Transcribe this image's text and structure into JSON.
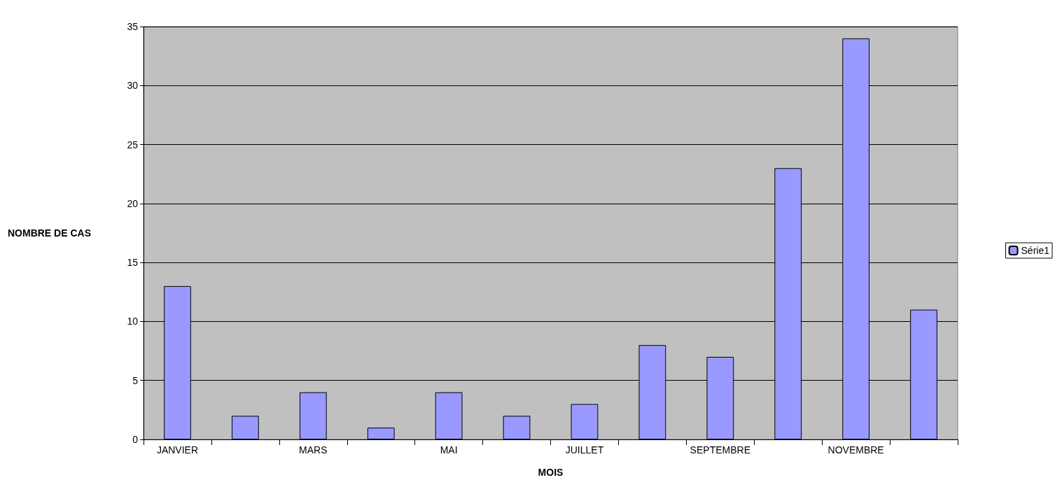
{
  "chart_data": {
    "type": "bar",
    "xlabel": "MOIS",
    "ylabel": "NOMBRE DE CAS",
    "categories": [
      "JANVIER",
      null,
      "MARS",
      null,
      "MAI",
      null,
      "JUILLET",
      null,
      "SEPTEMBRE",
      null,
      "NOVEMBRE",
      null
    ],
    "series": [
      {
        "name": "Série1",
        "color": "#9999ff",
        "values": [
          13,
          2,
          4,
          1,
          4,
          2,
          3,
          8,
          7,
          23,
          34,
          11
        ]
      }
    ],
    "ylim": [
      0,
      35
    ],
    "yticks": [
      0,
      5,
      10,
      15,
      20,
      25,
      30,
      35
    ],
    "grid": "y",
    "legend": "right"
  }
}
